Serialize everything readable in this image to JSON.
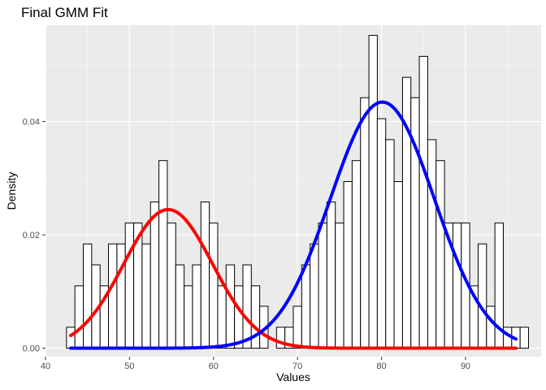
{
  "chart_data": {
    "type": "histogram",
    "title": "Final GMM Fit",
    "xlabel": "Values",
    "ylabel": "Density",
    "xlim": [
      40,
      99
    ],
    "ylim": [
      -0.0015,
      0.057
    ],
    "x_ticks": [
      40,
      50,
      60,
      70,
      80,
      90
    ],
    "y_ticks": [
      0.0,
      0.02,
      0.04
    ],
    "x_tick_labels": [
      "40",
      "50",
      "60",
      "70",
      "80",
      "90"
    ],
    "y_tick_labels": [
      "0.00",
      "0.02",
      "0.04"
    ],
    "grid": true,
    "legend": "none",
    "histogram": {
      "bin_start": 42.5,
      "bin_width": 1,
      "densities": [
        0.0037,
        0.011,
        0.0184,
        0.0147,
        0.011,
        0.0184,
        0.0184,
        0.0221,
        0.0221,
        0.0184,
        0.0258,
        0.0331,
        0.0221,
        0.0147,
        0.011,
        0.0147,
        0.0258,
        0.0221,
        0.011,
        0.0147,
        0.011,
        0.0147,
        0.011,
        0.0074,
        0.0,
        0.0037,
        0.0037,
        0.0074,
        0.0147,
        0.0184,
        0.0221,
        0.0258,
        0.0221,
        0.0294,
        0.0331,
        0.0442,
        0.0552,
        0.0405,
        0.0368,
        0.0294,
        0.0478,
        0.0442,
        0.0515,
        0.0368,
        0.0331,
        0.0221,
        0.0221,
        0.0221,
        0.011,
        0.0184,
        0.0074,
        0.0221,
        0.0037,
        0.0037,
        0.0037
      ]
    },
    "series": [
      {
        "component": 1,
        "color": "#ff0000",
        "mean": 54.6,
        "sd": 5.3,
        "weight": 0.325,
        "x_range": [
          43,
          96
        ]
      },
      {
        "component": 2,
        "color": "#0000ff",
        "mean": 80.1,
        "sd": 6.2,
        "weight": 0.675,
        "x_range": [
          43,
          96
        ]
      }
    ]
  }
}
